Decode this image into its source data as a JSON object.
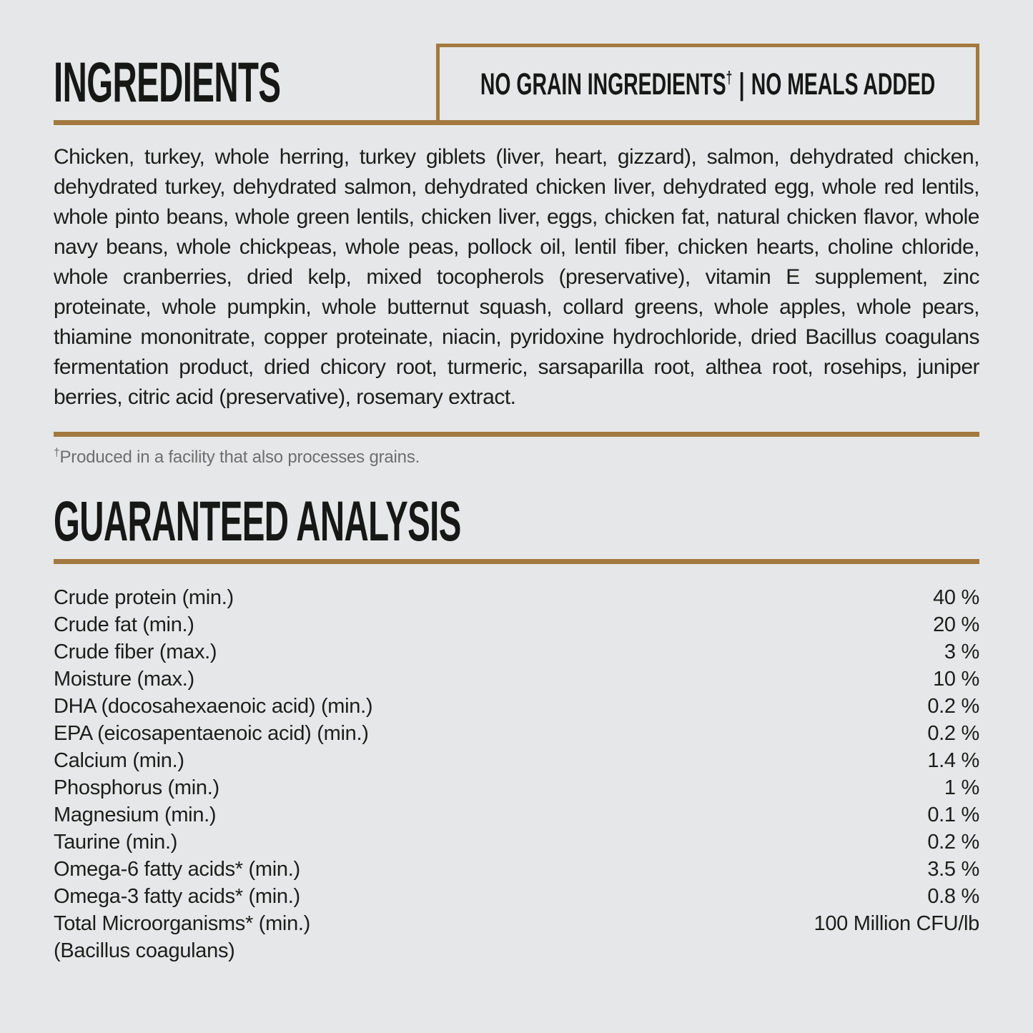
{
  "page": {
    "background_color": "#e6e7e8",
    "text_color": "#1d1d1b",
    "accent_color": "#a3793f",
    "footnote_color": "#6e6e6e"
  },
  "ingredients_section": {
    "title": "INGREDIENTS",
    "badge": {
      "part1": "NO GRAIN INGREDIENTS",
      "dagger": "†",
      "separator": "|",
      "part2": "NO MEALS ADDED"
    },
    "body": "Chicken, turkey, whole herring, turkey giblets (liver, heart, gizzard), salmon, dehydrated chicken, dehydrated turkey, dehydrated salmon, dehydrated chicken liver, dehydrated egg, whole red lentils, whole pinto beans, whole green lentils, chicken liver, eggs, chicken fat, natural chicken flavor, whole navy beans, whole chickpeas, whole peas, pollock oil, lentil fiber, chicken hearts, choline chloride, whole cranberries, dried kelp, mixed tocopherols (preservative), vitamin E supplement, zinc proteinate, whole pumpkin, whole butternut squash, collard greens, whole apples, whole pears, thiamine mononitrate, copper proteinate, niacin, pyridoxine hydrochloride, dried Bacillus coagulans fermentation product, dried chicory root, turmeric, sarsaparilla root, althea root, rosehips, juniper berries, citric acid (preservative), rosemary extract.",
    "footnote_dagger": "†",
    "footnote_text": "Produced in a facility that also processes grains."
  },
  "analysis_section": {
    "title": "GUARANTEED ANALYSIS",
    "rows": [
      {
        "label": "Crude protein (min.)",
        "value": "40 %"
      },
      {
        "label": "Crude fat (min.)",
        "value": "20 %"
      },
      {
        "label": "Crude fiber (max.)",
        "value": "3 %"
      },
      {
        "label": "Moisture (max.)",
        "value": "10 %"
      },
      {
        "label": "DHA (docosahexaenoic acid) (min.)",
        "value": "0.2 %"
      },
      {
        "label": "EPA (eicosapentaenoic acid) (min.)",
        "value": "0.2 %"
      },
      {
        "label": "Calcium (min.)",
        "value": "1.4 %"
      },
      {
        "label": "Phosphorus (min.)",
        "value": "1 %"
      },
      {
        "label": "Magnesium (min.)",
        "value": "0.1 %"
      },
      {
        "label": "Taurine (min.)",
        "value": "0.2 %"
      },
      {
        "label": "Omega-6 fatty acids* (min.)",
        "value": "3.5 %"
      },
      {
        "label": "Omega-3 fatty acids* (min.)",
        "value": "0.8 %"
      },
      {
        "label": "Total Microorganisms* (min.)",
        "value": "100 Million CFU/lb"
      },
      {
        "label": "(Bacillus coagulans)",
        "value": ""
      }
    ]
  }
}
